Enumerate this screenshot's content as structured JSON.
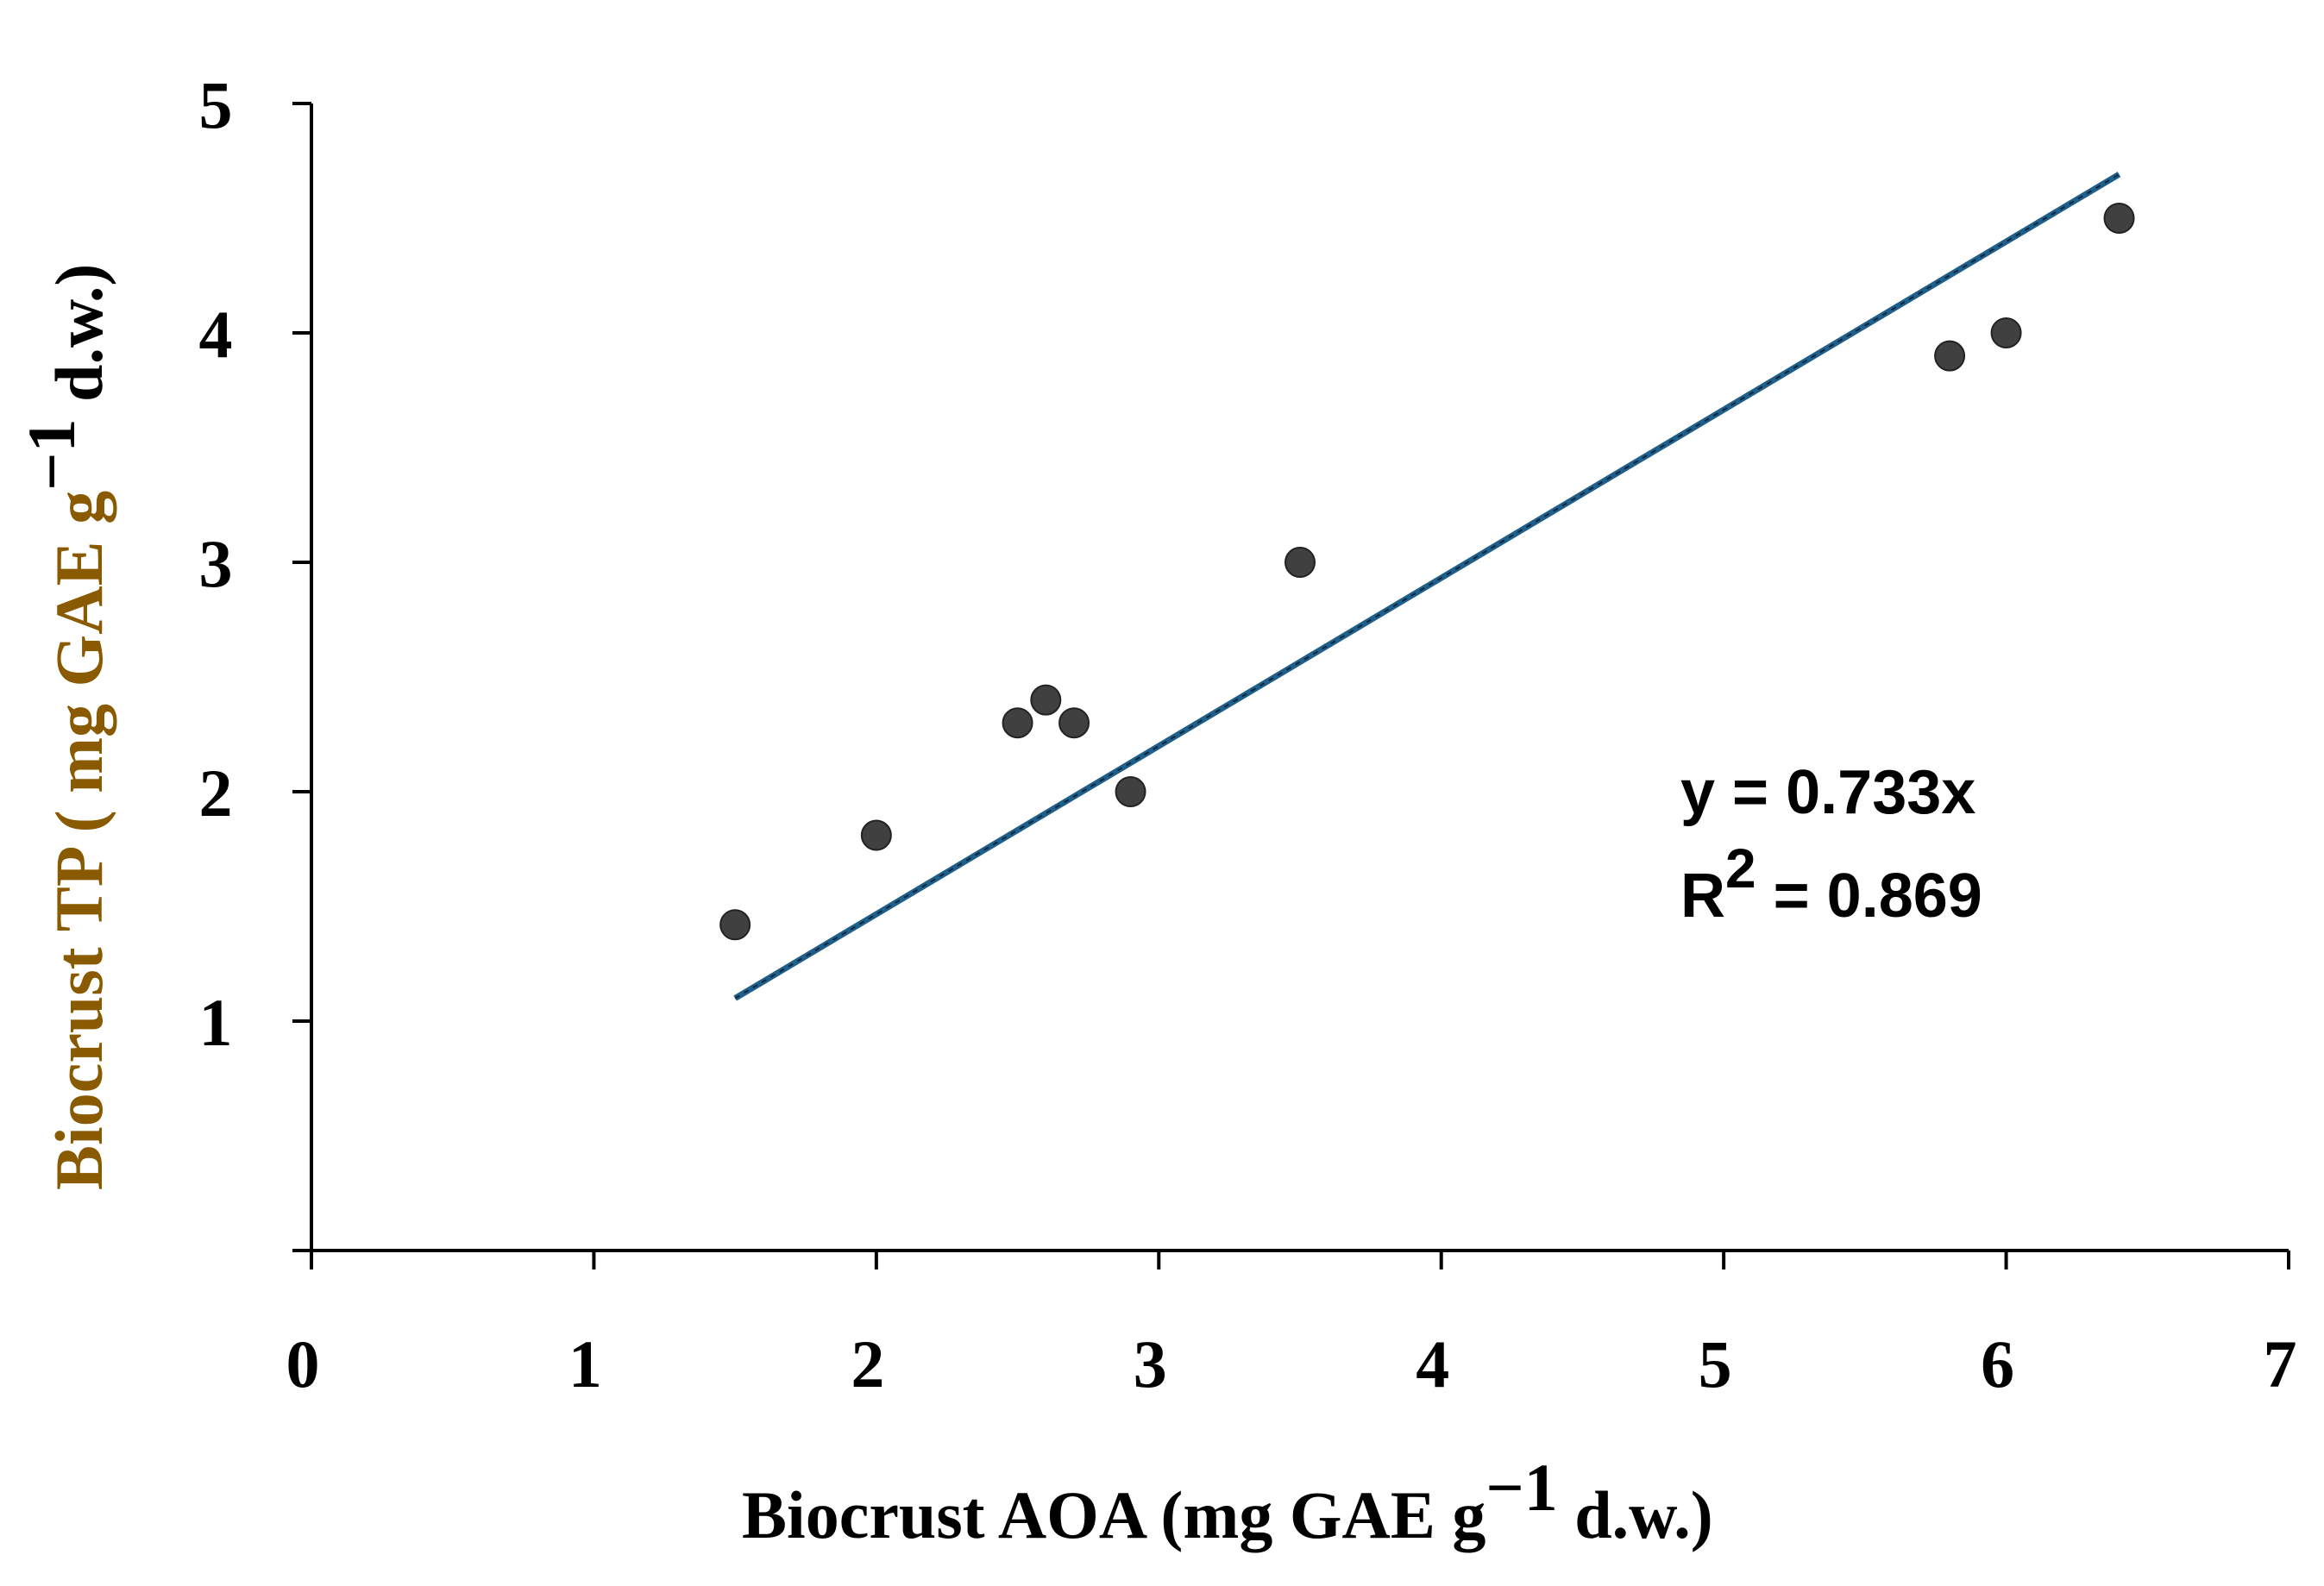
{
  "chart_data": {
    "type": "scatter",
    "title": "",
    "xlabel": {
      "text": "Biocrust AOA (mg GAE g",
      "sup": "−1",
      "suffix": " d.w.)"
    },
    "ylabel": {
      "text": "Biocrust TP ( mg GAE g",
      "sup": "−1",
      "suffix": " d.w.)"
    },
    "xlim": [
      0,
      7
    ],
    "ylim": [
      0,
      5
    ],
    "x_ticks": [
      0,
      1,
      2,
      3,
      4,
      5,
      6,
      7
    ],
    "y_ticks": [
      1,
      2,
      3,
      4,
      5
    ],
    "x_tick_labels": [
      "0",
      "1",
      "2",
      "3",
      "4",
      "5",
      "6",
      "7"
    ],
    "y_tick_labels": [
      "1",
      "2",
      "3",
      "4",
      "5"
    ],
    "points": [
      {
        "x": 1.5,
        "y": 1.42
      },
      {
        "x": 2.0,
        "y": 1.81
      },
      {
        "x": 2.5,
        "y": 2.3
      },
      {
        "x": 2.6,
        "y": 2.4
      },
      {
        "x": 2.7,
        "y": 2.3
      },
      {
        "x": 2.9,
        "y": 2.0
      },
      {
        "x": 3.5,
        "y": 3.0
      },
      {
        "x": 5.8,
        "y": 3.9
      },
      {
        "x": 6.0,
        "y": 4.0
      },
      {
        "x": 6.4,
        "y": 4.5
      }
    ],
    "trendline": {
      "slope": 0.733,
      "intercept": 0,
      "x_range": [
        1.5,
        6.4
      ]
    },
    "annotations": {
      "equation": "y = 0.733x",
      "r2_label": "R",
      "r2_sup": "2",
      "r2_value": " = 0.869"
    },
    "grid": false,
    "legend": "none",
    "colors": {
      "axis": "#000000",
      "point": "#404040",
      "trendline": "#1f5f8b",
      "label_text": "#8a5a00"
    }
  }
}
